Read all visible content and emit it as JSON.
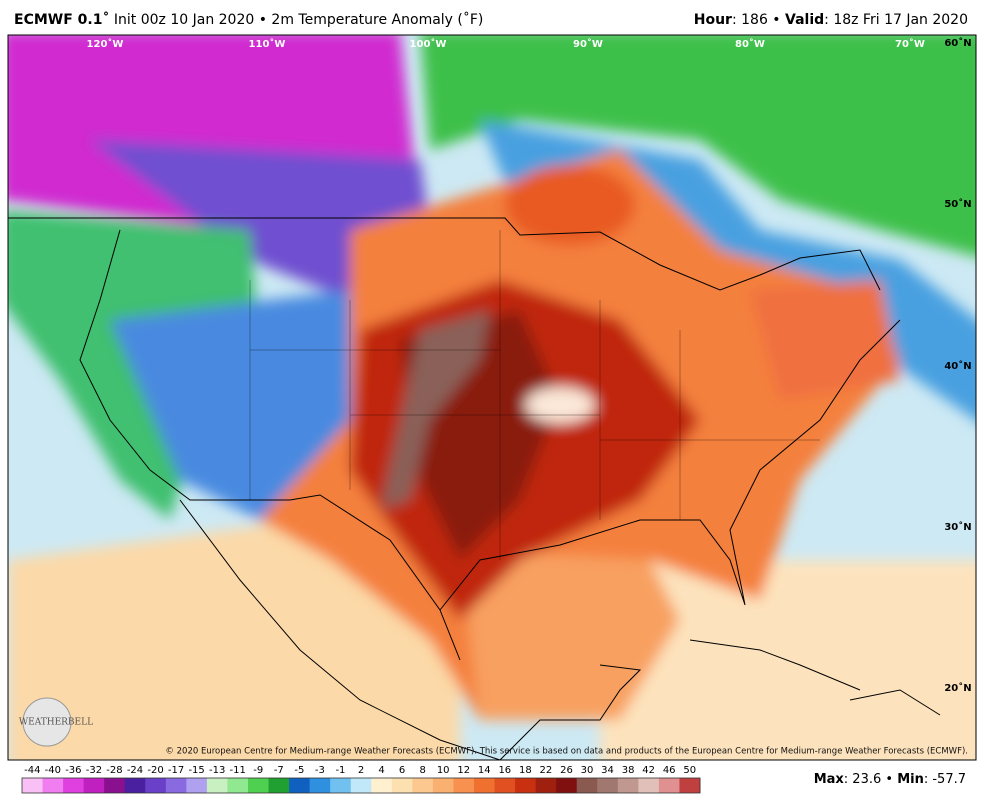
{
  "header": {
    "left": [
      {
        "text": "ECMWF 0.1˚",
        "bold": true
      },
      {
        "text": " Init 00z 10 Jan 2020 • 2m Temperature Anomaly (˚F)",
        "bold": false
      }
    ],
    "right": [
      {
        "text": "Hour",
        "bold": true
      },
      {
        "text": ": 186 • ",
        "bold": false
      },
      {
        "text": "Valid",
        "bold": true
      },
      {
        "text": ": 18z Fri 17 Jan 2020",
        "bold": false
      }
    ]
  },
  "map": {
    "longitude_labels": [
      "120˚W",
      "110˚W",
      "100˚W",
      "90˚W",
      "80˚W",
      "70˚W"
    ],
    "latitude_labels": [
      "60˚N",
      "50˚N",
      "40˚N",
      "30˚N",
      "20˚N"
    ],
    "copyright": "© 2020 European Centre for Medium-range Weather Forecasts (ECMWF). This service is based on data and products of the European Centre for Medium-range Weather Forecasts (ECMWF).",
    "logo": "WEATHERBELL"
  },
  "colorbar": {
    "labels": [
      -44,
      -40,
      -36,
      -32,
      -28,
      -24,
      -20,
      -17,
      -15,
      -13,
      -11,
      -9,
      -7,
      -5,
      -3,
      -1,
      2,
      4,
      6,
      8,
      10,
      12,
      14,
      16,
      18,
      22,
      26,
      30,
      34,
      38,
      42,
      46,
      50
    ],
    "colors": [
      "#f9c0f5",
      "#f07ef0",
      "#e040e0",
      "#c020c0",
      "#8a1090",
      "#4a20a0",
      "#6a40c8",
      "#8a6ae0",
      "#b0a0f0",
      "#c8f0c0",
      "#90e890",
      "#50d050",
      "#20a030",
      "#1060c0",
      "#3090e0",
      "#70c0f0",
      "#c0e8f8",
      "#fff0d0",
      "#fde0b0",
      "#fcc890",
      "#fab070",
      "#f89050",
      "#f07030",
      "#e05020",
      "#c83010",
      "#a02010",
      "#801010",
      "#8a5a50",
      "#a07870",
      "#c09890",
      "#e0c0b8",
      "#e09090",
      "#c04040"
    ]
  },
  "footer": [
    {
      "text": "Max",
      "bold": true
    },
    {
      "text": ": 23.6 • ",
      "bold": false
    },
    {
      "text": "Min",
      "bold": true
    },
    {
      "text": ": -57.7",
      "bold": false
    }
  ]
}
